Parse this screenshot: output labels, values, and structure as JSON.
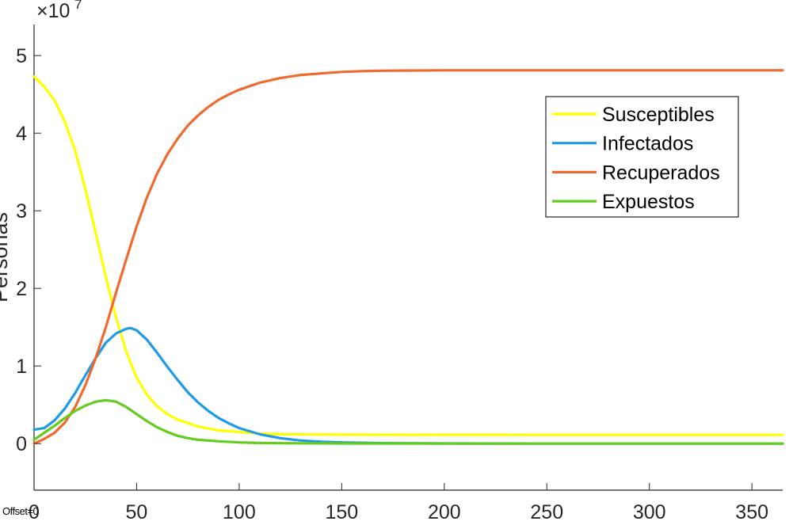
{
  "chart_data": {
    "type": "line",
    "ylabel": "Personas",
    "xlabel": "",
    "xlim": [
      0,
      365
    ],
    "ylim": [
      -0.6,
      5.4
    ],
    "y_exponent": "7",
    "xticks": [
      0,
      50,
      100,
      150,
      200,
      250,
      300,
      350
    ],
    "yticks": [
      0,
      1,
      2,
      3,
      4,
      5
    ],
    "grid": false,
    "legend_position": "top-right",
    "series": [
      {
        "name": "Susceptibles",
        "color": "#ffff00",
        "x": [
          0,
          5,
          10,
          15,
          20,
          25,
          30,
          35,
          40,
          45,
          50,
          55,
          60,
          65,
          70,
          80,
          90,
          100,
          110,
          120,
          150,
          200,
          250,
          300,
          365
        ],
        "y": [
          4.73,
          4.6,
          4.42,
          4.15,
          3.78,
          3.28,
          2.72,
          2.15,
          1.62,
          1.18,
          0.85,
          0.63,
          0.48,
          0.38,
          0.31,
          0.22,
          0.17,
          0.15,
          0.13,
          0.12,
          0.115,
          0.113,
          0.112,
          0.112,
          0.112
        ]
      },
      {
        "name": "Infectados",
        "color": "#1e9be5",
        "x": [
          0,
          5,
          10,
          15,
          20,
          25,
          30,
          35,
          40,
          45,
          47,
          50,
          55,
          60,
          65,
          70,
          75,
          80,
          85,
          90,
          95,
          100,
          110,
          120,
          130,
          140,
          150,
          170,
          200,
          250,
          300,
          365
        ],
        "y": [
          0.18,
          0.2,
          0.3,
          0.45,
          0.65,
          0.88,
          1.1,
          1.3,
          1.42,
          1.48,
          1.49,
          1.46,
          1.34,
          1.17,
          0.99,
          0.82,
          0.66,
          0.53,
          0.42,
          0.33,
          0.26,
          0.2,
          0.12,
          0.07,
          0.04,
          0.025,
          0.015,
          0.006,
          0.002,
          0.0,
          0.0,
          0.0
        ]
      },
      {
        "name": "Recuperados",
        "color": "#ef6a2f",
        "x": [
          0,
          5,
          10,
          15,
          20,
          25,
          30,
          35,
          40,
          45,
          50,
          55,
          60,
          65,
          70,
          75,
          80,
          85,
          90,
          95,
          100,
          110,
          120,
          130,
          140,
          150,
          160,
          170,
          200,
          250,
          300,
          365
        ],
        "y": [
          0.0,
          0.06,
          0.14,
          0.27,
          0.47,
          0.75,
          1.1,
          1.5,
          1.95,
          2.38,
          2.8,
          3.17,
          3.48,
          3.73,
          3.93,
          4.1,
          4.23,
          4.34,
          4.43,
          4.5,
          4.56,
          4.65,
          4.71,
          4.75,
          4.77,
          4.79,
          4.8,
          4.805,
          4.81,
          4.81,
          4.81,
          4.81
        ]
      },
      {
        "name": "Expuestos",
        "color": "#63cc1e",
        "x": [
          0,
          5,
          10,
          15,
          20,
          25,
          30,
          35,
          40,
          45,
          50,
          55,
          60,
          65,
          70,
          75,
          80,
          90,
          100,
          110,
          120,
          150,
          200,
          250,
          300,
          365
        ],
        "y": [
          0.05,
          0.14,
          0.23,
          0.33,
          0.42,
          0.49,
          0.54,
          0.56,
          0.54,
          0.47,
          0.38,
          0.29,
          0.21,
          0.15,
          0.1,
          0.07,
          0.05,
          0.03,
          0.015,
          0.008,
          0.005,
          0.002,
          0.0,
          0.0,
          0.0,
          0.0
        ]
      }
    ]
  },
  "footer": {
    "offset_note": "Offset=0"
  }
}
